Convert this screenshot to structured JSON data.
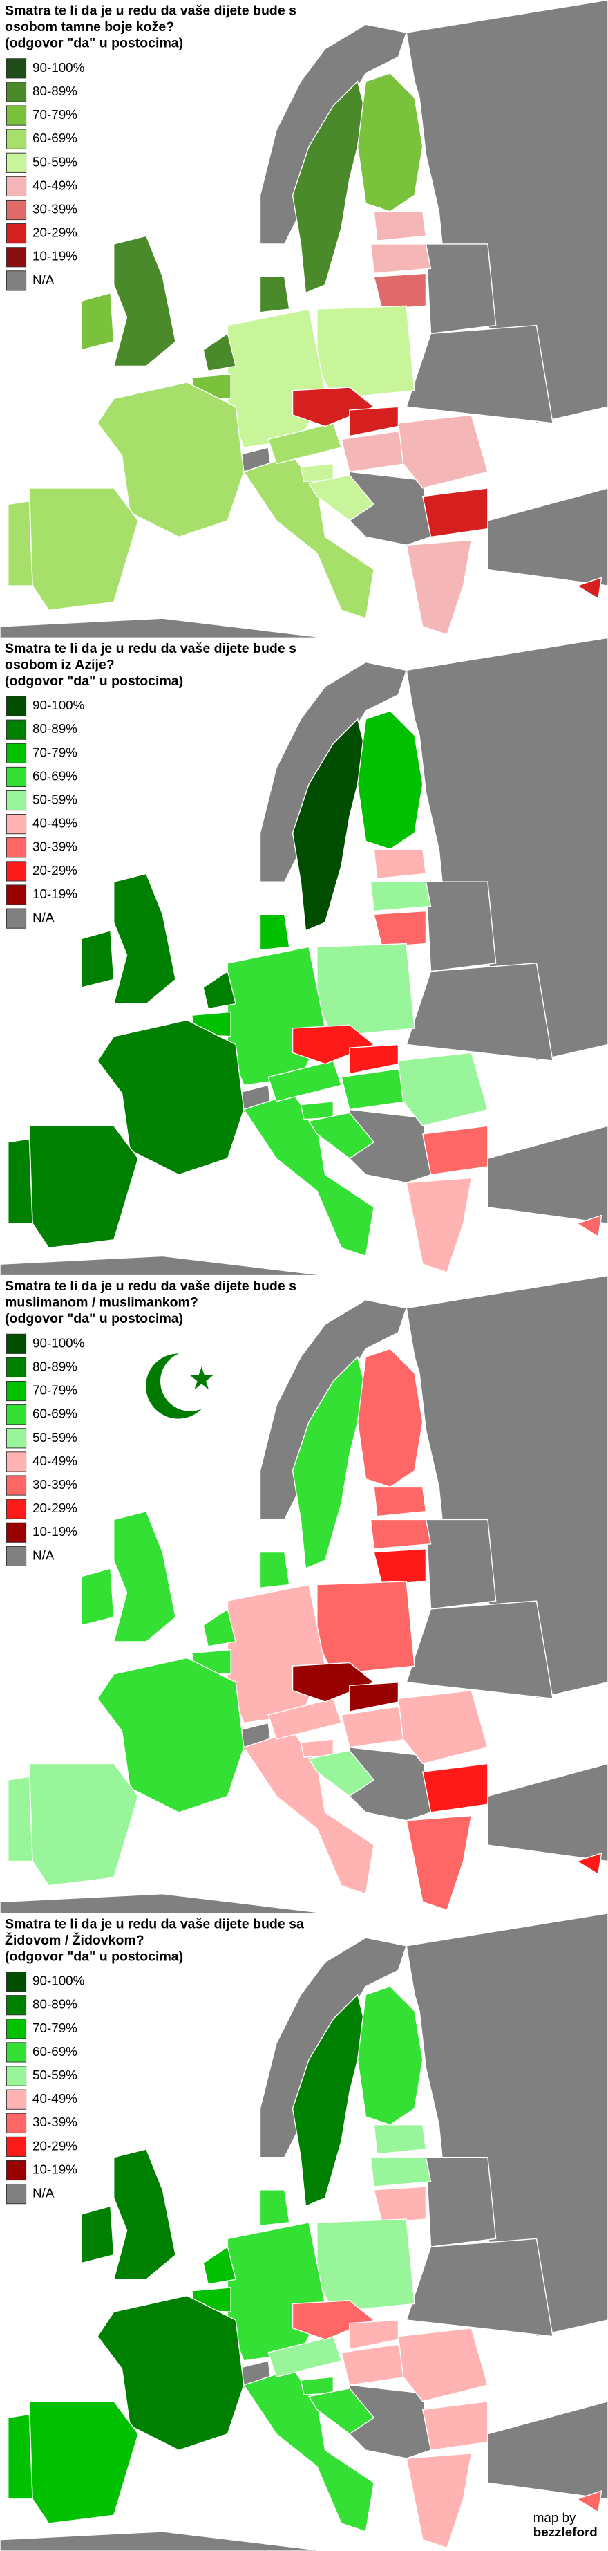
{
  "panels": [
    {
      "title": [
        "Smatra te li da je u redu da vaše dijete bude s",
        "osobom tamne boje kože?",
        "(odgovor \"da\" u postocima)"
      ],
      "legend": [
        {
          "label": "90-100%",
          "color": "#1f4d1a"
        },
        {
          "label": "80-89%",
          "color": "#4a8a2a"
        },
        {
          "label": "70-79%",
          "color": "#7ac23c"
        },
        {
          "label": "60-69%",
          "color": "#a6e06a"
        },
        {
          "label": "50-59%",
          "color": "#c8f59a"
        },
        {
          "label": "40-49%",
          "color": "#f4b6b6"
        },
        {
          "label": "30-39%",
          "color": "#e06a6a"
        },
        {
          "label": "20-29%",
          "color": "#d62020"
        },
        {
          "label": "10-19%",
          "color": "#8b0f0f"
        },
        {
          "label": "N/A",
          "color": "#808080"
        }
      ]
    },
    {
      "title": [
        "Smatra te li da je u redu da vaše dijete bude s",
        "osobom iz Azije?",
        "(odgovor \"da\" u postocima)"
      ],
      "legend": [
        {
          "label": "90-100%",
          "color": "#004d00"
        },
        {
          "label": "80-89%",
          "color": "#008000"
        },
        {
          "label": "70-79%",
          "color": "#00c000"
        },
        {
          "label": "60-69%",
          "color": "#33e033"
        },
        {
          "label": "50-59%",
          "color": "#99f599"
        },
        {
          "label": "40-49%",
          "color": "#ffb3b3"
        },
        {
          "label": "30-39%",
          "color": "#ff6666"
        },
        {
          "label": "20-29%",
          "color": "#ff1a1a"
        },
        {
          "label": "10-19%",
          "color": "#990000"
        },
        {
          "label": "N/A",
          "color": "#808080"
        }
      ]
    },
    {
      "title": [
        "Smatra te li da je u redu da vaše dijete bude s",
        "muslimanom / muslimankom?",
        "(odgovor \"da\" u postocima)"
      ],
      "legend": [
        {
          "label": "90-100%",
          "color": "#004d00"
        },
        {
          "label": "80-89%",
          "color": "#008000"
        },
        {
          "label": "70-79%",
          "color": "#00c000"
        },
        {
          "label": "60-69%",
          "color": "#33e033"
        },
        {
          "label": "50-59%",
          "color": "#99f599"
        },
        {
          "label": "40-49%",
          "color": "#ffb3b3"
        },
        {
          "label": "30-39%",
          "color": "#ff6666"
        },
        {
          "label": "20-29%",
          "color": "#ff1a1a"
        },
        {
          "label": "10-19%",
          "color": "#990000"
        },
        {
          "label": "N/A",
          "color": "#808080"
        }
      ]
    },
    {
      "title": [
        "Smatra te li da je u redu da vaše dijete bude sa",
        "Židovom / Židovkom?",
        "(odgovor \"da\" u postocima)"
      ],
      "legend": [
        {
          "label": "90-100%",
          "color": "#004d00"
        },
        {
          "label": "80-89%",
          "color": "#008000"
        },
        {
          "label": "70-79%",
          "color": "#00c000"
        },
        {
          "label": "60-69%",
          "color": "#33e033"
        },
        {
          "label": "50-59%",
          "color": "#99f599"
        },
        {
          "label": "40-49%",
          "color": "#ffb3b3"
        },
        {
          "label": "30-39%",
          "color": "#ff6666"
        },
        {
          "label": "20-29%",
          "color": "#ff1a1a"
        },
        {
          "label": "10-19%",
          "color": "#990000"
        },
        {
          "label": "N/A",
          "color": "#808080"
        }
      ]
    }
  ],
  "credit": [
    "map by",
    "bezzleford"
  ]
}
